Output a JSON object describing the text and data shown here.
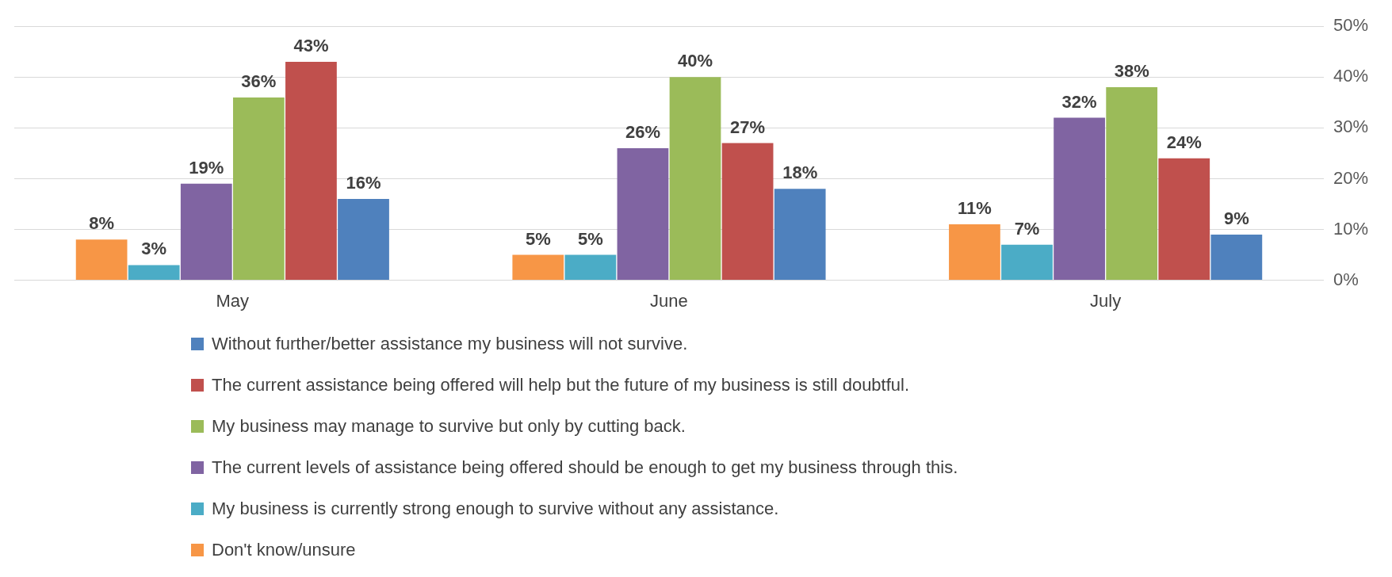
{
  "chart_data": {
    "type": "bar",
    "categories": [
      "May",
      "June",
      "July"
    ],
    "series": [
      {
        "name": "Don't know/unsure",
        "color": "#f79646",
        "values": [
          8,
          5,
          11
        ],
        "value_labels": [
          "8%",
          "5%",
          "11%"
        ]
      },
      {
        "name": "My business is currently strong enough to survive without any assistance.",
        "color": "#4bacc6",
        "values": [
          3,
          5,
          7
        ],
        "value_labels": [
          "3%",
          "5%",
          "7%"
        ]
      },
      {
        "name": "The current levels of assistance being offered should be enough to get my business through this.",
        "color": "#8064a2",
        "values": [
          19,
          26,
          32
        ],
        "value_labels": [
          "19%",
          "26%",
          "32%"
        ]
      },
      {
        "name": "My business may manage to survive but only by cutting back.",
        "color": "#9bbb59",
        "values": [
          36,
          40,
          38
        ],
        "value_labels": [
          "36%",
          "40%",
          "38%"
        ]
      },
      {
        "name": "The current assistance being offered will help but the future of my business is still doubtful.",
        "color": "#c0504d",
        "values": [
          43,
          27,
          24
        ],
        "value_labels": [
          "43%",
          "27%",
          "24%"
        ]
      },
      {
        "name": "Without further/better assistance my business will not survive.",
        "color": "#4f81bd",
        "values": [
          16,
          18,
          9
        ],
        "value_labels": [
          "16%",
          "18%",
          "9%"
        ]
      }
    ],
    "ylim": [
      0,
      50
    ],
    "yticks": [
      {
        "value": 0,
        "label": "0%"
      },
      {
        "value": 10,
        "label": "10%"
      },
      {
        "value": 20,
        "label": "20%"
      },
      {
        "value": 30,
        "label": "30%"
      },
      {
        "value": 40,
        "label": "40%"
      },
      {
        "value": 50,
        "label": "50%"
      }
    ],
    "grid": "y",
    "legend": "bottom"
  }
}
